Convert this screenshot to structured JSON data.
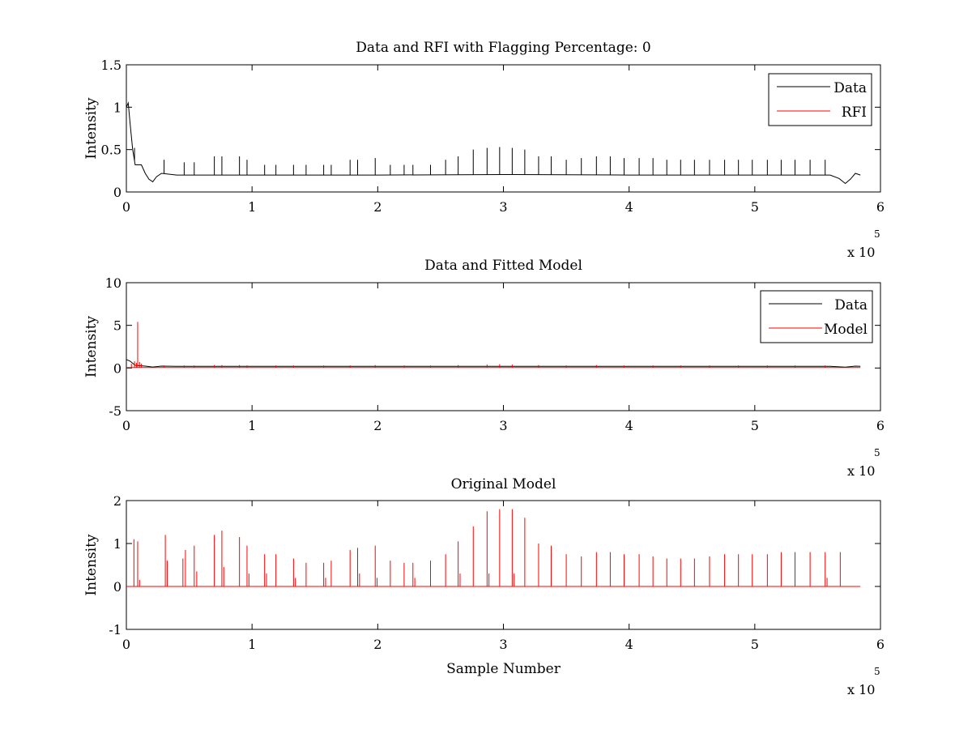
{
  "figure": {
    "background": "#ffffff"
  },
  "chart_data": [
    {
      "type": "line",
      "title": "Data and RFI with Flagging Percentage: 0",
      "xlabel": "",
      "ylabel": "Intensity",
      "xlim": [
        0,
        600000
      ],
      "ylim": [
        0,
        1.5
      ],
      "x_ticks": [
        0,
        100000,
        200000,
        300000,
        400000,
        500000,
        600000
      ],
      "x_tick_labels": [
        "0",
        "1",
        "2",
        "3",
        "4",
        "5",
        "6"
      ],
      "y_ticks": [
        0,
        0.5,
        1,
        1.5
      ],
      "y_tick_labels": [
        "0",
        "0.5",
        "1",
        "1.5"
      ],
      "x_exponent_label": "x 10",
      "x_exponent_power": "5",
      "legend": {
        "position": "top-right",
        "entries": [
          {
            "name": "Data",
            "color": "#000000"
          },
          {
            "name": "RFI",
            "color": "#ff0000"
          }
        ]
      },
      "series": [
        {
          "name": "Data",
          "color": "#000000",
          "baseline": [
            [
              0,
              1.0
            ],
            [
              1500,
              1.05
            ],
            [
              3000,
              0.8
            ],
            [
              5000,
              0.5
            ],
            [
              7000,
              0.32
            ],
            [
              12000,
              0.32
            ],
            [
              15000,
              0.22
            ],
            [
              18000,
              0.15
            ],
            [
              21000,
              0.12
            ],
            [
              24000,
              0.18
            ],
            [
              28000,
              0.22
            ],
            [
              40000,
              0.2
            ],
            [
              100000,
              0.2
            ],
            [
              200000,
              0.2
            ],
            [
              300000,
              0.205
            ],
            [
              400000,
              0.2
            ],
            [
              500000,
              0.2
            ],
            [
              560000,
              0.2
            ],
            [
              567000,
              0.16
            ],
            [
              572000,
              0.1
            ],
            [
              576000,
              0.15
            ],
            [
              580000,
              0.22
            ],
            [
              584000,
              0.2
            ]
          ],
          "spikes": [
            [
              6500,
              0.52
            ],
            [
              30000,
              0.38
            ],
            [
              46000,
              0.35
            ],
            [
              54000,
              0.35
            ],
            [
              70000,
              0.42
            ],
            [
              76000,
              0.42
            ],
            [
              90000,
              0.42
            ],
            [
              96000,
              0.38
            ],
            [
              110000,
              0.32
            ],
            [
              119000,
              0.32
            ],
            [
              133000,
              0.32
            ],
            [
              143000,
              0.32
            ],
            [
              157000,
              0.32
            ],
            [
              163000,
              0.32
            ],
            [
              178000,
              0.38
            ],
            [
              184000,
              0.38
            ],
            [
              198000,
              0.4
            ],
            [
              210000,
              0.32
            ],
            [
              221000,
              0.32
            ],
            [
              228000,
              0.32
            ],
            [
              242000,
              0.32
            ],
            [
              254000,
              0.38
            ],
            [
              264000,
              0.42
            ],
            [
              276000,
              0.5
            ],
            [
              287000,
              0.52
            ],
            [
              297000,
              0.53
            ],
            [
              307000,
              0.52
            ],
            [
              317000,
              0.5
            ],
            [
              328000,
              0.42
            ],
            [
              338000,
              0.42
            ],
            [
              350000,
              0.38
            ],
            [
              362000,
              0.4
            ],
            [
              374000,
              0.42
            ],
            [
              385000,
              0.42
            ],
            [
              396000,
              0.4
            ],
            [
              408000,
              0.4
            ],
            [
              419000,
              0.4
            ],
            [
              430000,
              0.38
            ],
            [
              441000,
              0.38
            ],
            [
              452000,
              0.38
            ],
            [
              464000,
              0.38
            ],
            [
              476000,
              0.38
            ],
            [
              487000,
              0.38
            ],
            [
              498000,
              0.38
            ],
            [
              510000,
              0.38
            ],
            [
              521000,
              0.38
            ],
            [
              532000,
              0.38
            ],
            [
              544000,
              0.38
            ],
            [
              556000,
              0.38
            ]
          ]
        },
        {
          "name": "RFI",
          "color": "#ff0000",
          "points": []
        }
      ]
    },
    {
      "type": "line",
      "title": "Data and Fitted Model",
      "xlabel": "",
      "ylabel": "Intensity",
      "xlim": [
        0,
        600000
      ],
      "ylim": [
        -5,
        10
      ],
      "x_ticks": [
        0,
        100000,
        200000,
        300000,
        400000,
        500000,
        600000
      ],
      "x_tick_labels": [
        "0",
        "1",
        "2",
        "3",
        "4",
        "5",
        "6"
      ],
      "y_ticks": [
        -5,
        0,
        5,
        10
      ],
      "y_tick_labels": [
        "-5",
        "0",
        "5",
        "10"
      ],
      "x_exponent_label": "x 10",
      "x_exponent_power": "5",
      "legend": {
        "position": "top-right",
        "entries": [
          {
            "name": "Data",
            "color": "#000000"
          },
          {
            "name": "Model",
            "color": "#ff0000"
          }
        ]
      },
      "series": [
        {
          "name": "Data",
          "color": "#000000",
          "baseline": [
            [
              0,
              1.0
            ],
            [
              3000,
              0.8
            ],
            [
              7000,
              0.32
            ],
            [
              15000,
              0.22
            ],
            [
              21000,
              0.12
            ],
            [
              28000,
              0.22
            ],
            [
              40000,
              0.2
            ],
            [
              300000,
              0.2
            ],
            [
              560000,
              0.2
            ],
            [
              572000,
              0.1
            ],
            [
              580000,
              0.22
            ],
            [
              584000,
              0.2
            ]
          ]
        },
        {
          "name": "Model",
          "color": "#ff0000",
          "baseline": [
            [
              0,
              0.05
            ],
            [
              584000,
              0.05
            ]
          ],
          "spikes": [
            [
              4000,
              0.5
            ],
            [
              6500,
              0.8
            ],
            [
              8000,
              0.6
            ],
            [
              9000,
              5.4
            ],
            [
              10500,
              0.7
            ],
            [
              12000,
              0.5
            ],
            [
              30000,
              0.3
            ],
            [
              46000,
              0.3
            ],
            [
              54000,
              0.3
            ],
            [
              70000,
              0.35
            ],
            [
              76000,
              0.35
            ],
            [
              90000,
              0.35
            ],
            [
              96000,
              0.3
            ],
            [
              119000,
              0.3
            ],
            [
              133000,
              0.3
            ],
            [
              157000,
              0.3
            ],
            [
              178000,
              0.3
            ],
            [
              198000,
              0.35
            ],
            [
              221000,
              0.3
            ],
            [
              242000,
              0.3
            ],
            [
              264000,
              0.35
            ],
            [
              287000,
              0.4
            ],
            [
              297000,
              0.45
            ],
            [
              307000,
              0.4
            ],
            [
              328000,
              0.35
            ],
            [
              350000,
              0.3
            ],
            [
              374000,
              0.35
            ],
            [
              396000,
              0.3
            ],
            [
              419000,
              0.3
            ],
            [
              441000,
              0.3
            ],
            [
              464000,
              0.3
            ],
            [
              487000,
              0.3
            ],
            [
              510000,
              0.3
            ],
            [
              532000,
              0.3
            ],
            [
              556000,
              0.3
            ]
          ]
        }
      ]
    },
    {
      "type": "line",
      "title": "Original Model",
      "xlabel": "Sample Number",
      "ylabel": "Intensity",
      "xlim": [
        0,
        600000
      ],
      "ylim": [
        -1,
        2
      ],
      "x_ticks": [
        0,
        100000,
        200000,
        300000,
        400000,
        500000,
        600000
      ],
      "x_tick_labels": [
        "0",
        "1",
        "2",
        "3",
        "4",
        "5",
        "6"
      ],
      "y_ticks": [
        -1,
        0,
        1,
        2
      ],
      "y_tick_labels": [
        "-1",
        "0",
        "1",
        "2"
      ],
      "x_exponent_label": "x 10",
      "x_exponent_power": "5",
      "series": [
        {
          "name": "",
          "color": "#ff0000",
          "baseline": [
            [
              0,
              0
            ],
            [
              584000,
              0
            ]
          ],
          "spikes": [
            [
              6000,
              1.1
            ],
            [
              9000,
              1.05
            ],
            [
              10500,
              0.15
            ],
            [
              31000,
              1.2
            ],
            [
              32500,
              0.6
            ],
            [
              45000,
              0.65
            ],
            [
              47000,
              0.85
            ],
            [
              54000,
              0.95
            ],
            [
              56000,
              0.35
            ],
            [
              70000,
              1.2
            ],
            [
              76000,
              1.3
            ],
            [
              77500,
              0.45
            ],
            [
              90000,
              1.15
            ],
            [
              96000,
              0.95
            ],
            [
              97500,
              0.3
            ],
            [
              110000,
              0.75
            ],
            [
              111500,
              0.3
            ],
            [
              119000,
              0.75
            ],
            [
              133000,
              0.65
            ],
            [
              134500,
              0.2
            ],
            [
              143000,
              0.55
            ],
            [
              157000,
              0.55
            ],
            [
              158500,
              0.2
            ],
            [
              163000,
              0.6
            ],
            [
              178000,
              0.85
            ],
            [
              184000,
              0.9
            ],
            [
              185500,
              0.3
            ],
            [
              198000,
              0.95
            ],
            [
              199500,
              0.2
            ],
            [
              210000,
              0.6
            ],
            [
              221000,
              0.55
            ],
            [
              228000,
              0.55
            ],
            [
              229500,
              0.2
            ],
            [
              242000,
              0.6
            ],
            [
              254000,
              0.75
            ],
            [
              264000,
              1.05
            ],
            [
              265500,
              0.3
            ],
            [
              276000,
              1.4
            ],
            [
              287000,
              1.75
            ],
            [
              288500,
              0.3
            ],
            [
              297000,
              1.8
            ],
            [
              307000,
              1.8
            ],
            [
              308500,
              0.3
            ],
            [
              317000,
              1.6
            ],
            [
              328000,
              1.0
            ],
            [
              338000,
              0.95
            ],
            [
              350000,
              0.75
            ],
            [
              362000,
              0.7
            ],
            [
              374000,
              0.8
            ],
            [
              385000,
              0.8
            ],
            [
              396000,
              0.75
            ],
            [
              408000,
              0.75
            ],
            [
              419000,
              0.7
            ],
            [
              430000,
              0.65
            ],
            [
              441000,
              0.65
            ],
            [
              452000,
              0.65
            ],
            [
              464000,
              0.7
            ],
            [
              476000,
              0.75
            ],
            [
              487000,
              0.75
            ],
            [
              498000,
              0.75
            ],
            [
              510000,
              0.75
            ],
            [
              521000,
              0.8
            ],
            [
              532000,
              0.8
            ],
            [
              544000,
              0.8
            ],
            [
              556000,
              0.8
            ],
            [
              557500,
              0.2
            ],
            [
              568000,
              0.8
            ]
          ]
        }
      ]
    }
  ]
}
